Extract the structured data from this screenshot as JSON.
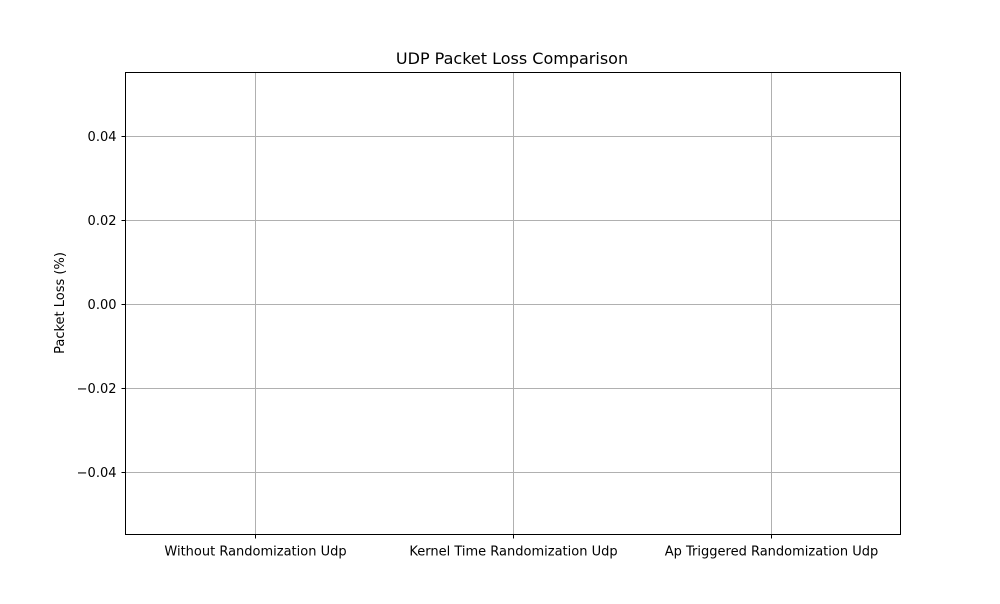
{
  "chart_data": {
    "type": "bar",
    "title": "UDP Packet Loss Comparison",
    "xlabel": "",
    "ylabel": "Packet Loss (%)",
    "categories": [
      "Without Randomization Udp",
      "Kernel Time Randomization Udp",
      "Ap Triggered Randomization Udp"
    ],
    "values": [
      0,
      0,
      0
    ],
    "ylim": [
      -0.055,
      0.055
    ],
    "yticks": [
      -0.04,
      -0.02,
      0.0,
      0.02,
      0.04
    ],
    "ytick_labels": [
      "−0.04",
      "−0.02",
      "0.00",
      "0.02",
      "0.04"
    ],
    "grid": true,
    "legend": "none",
    "colors": {
      "grid": "#b0b0b0",
      "axis": "#000000",
      "bar": "#1f77b4"
    }
  }
}
